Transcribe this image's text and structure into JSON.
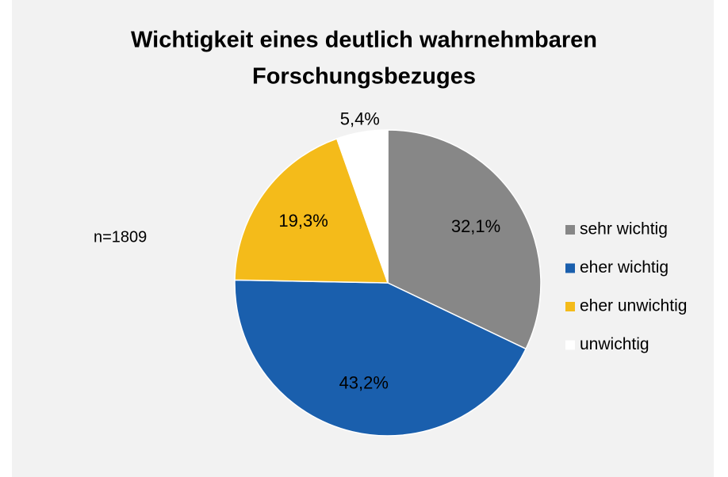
{
  "chart_data": {
    "type": "pie",
    "title": [
      "Wichtigkeit eines deutlich wahrnehmbaren",
      "Forschungsbezuges"
    ],
    "categories": [
      "sehr wichtig",
      "eher wichtig",
      "eher unwichtig",
      "unwichtig"
    ],
    "values": [
      32.1,
      43.2,
      19.3,
      5.4
    ],
    "value_labels": [
      "32,1%",
      "43,2%",
      "19,3%",
      "5,4%"
    ],
    "colors": [
      "#878787",
      "#1a5fad",
      "#f4bb1a",
      "#ffffff"
    ],
    "annotation": "n=1809",
    "legend": "right"
  }
}
